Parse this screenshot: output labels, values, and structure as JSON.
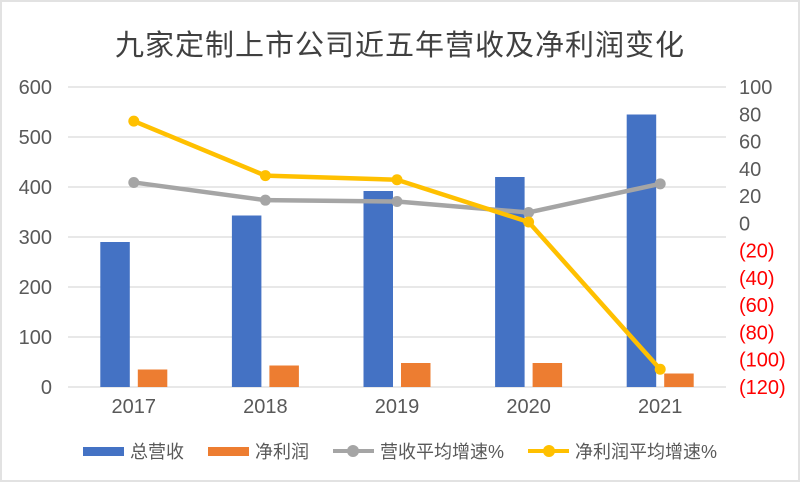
{
  "title": "九家定制上市公司近五年营收及净利润变化",
  "colors": {
    "bar_revenue": "#4472C4",
    "bar_profit": "#ED7D31",
    "line_revenue_growth": "#A5A5A5",
    "line_profit_growth": "#FFC000",
    "axis_text": "#595959",
    "negative_axis_text": "#FF0000",
    "gridline": "#D9D9D9",
    "title_text": "#404040"
  },
  "chart_data": {
    "type": "combo-bar-line",
    "title": "九家定制上市公司近五年营收及净利润变化",
    "categories": [
      "2017",
      "2018",
      "2019",
      "2020",
      "2021"
    ],
    "series": [
      {
        "name": "总营收",
        "type": "bar",
        "axis": "left",
        "color": "#4472C4",
        "values": [
          290,
          343,
          392,
          420,
          545
        ]
      },
      {
        "name": "净利润",
        "type": "bar",
        "axis": "left",
        "color": "#ED7D31",
        "values": [
          35,
          43,
          48,
          48,
          27
        ]
      },
      {
        "name": "营收平均增速%",
        "type": "line",
        "axis": "right",
        "color": "#A5A5A5",
        "values": [
          30,
          17,
          16,
          8,
          29
        ]
      },
      {
        "name": "净利润平均增速%",
        "type": "line",
        "axis": "right",
        "color": "#FFC000",
        "values": [
          75,
          35,
          32,
          1,
          -107
        ]
      }
    ],
    "left_axis": {
      "min": 0,
      "max": 600,
      "tick_labels": [
        "600",
        "500",
        "400",
        "300",
        "200",
        "100",
        "0"
      ],
      "text_color": "#595959"
    },
    "right_axis": {
      "min": -120,
      "max": 100,
      "tick_labels": [
        "100",
        "80",
        "60",
        "40",
        "20",
        "0",
        "(20)",
        "(40)",
        "(60)",
        "(80)",
        "(100)",
        "(120)"
      ],
      "positive_color": "#595959",
      "negative_color": "#FF0000"
    },
    "x_axis": {
      "labels": [
        "2017",
        "2018",
        "2019",
        "2020",
        "2021"
      ],
      "text_color": "#595959"
    },
    "grid": true,
    "gridline_color": "#D9D9D9",
    "legend_position": "bottom"
  }
}
